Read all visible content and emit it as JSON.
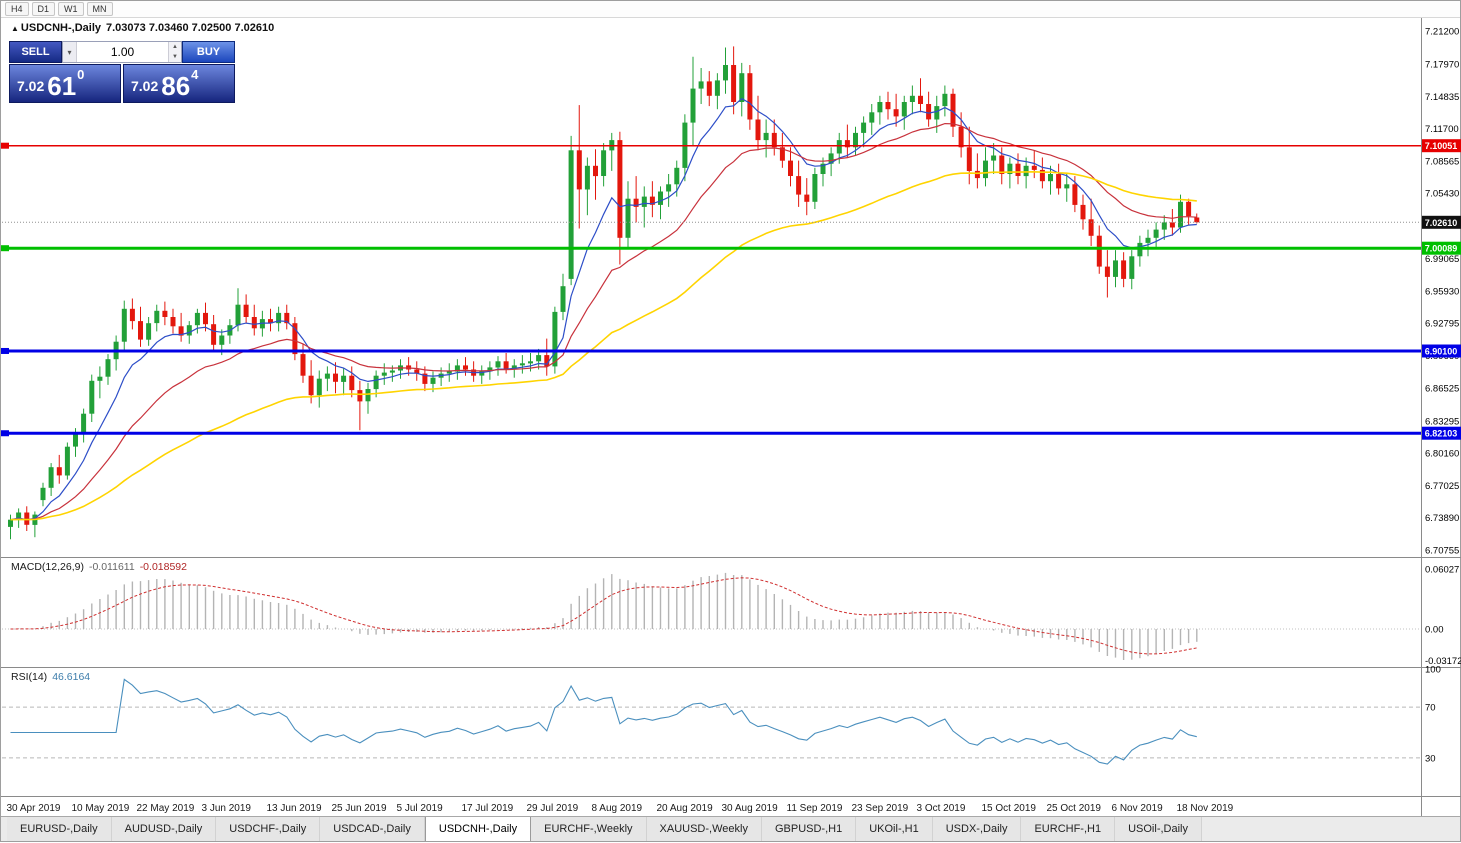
{
  "toolbar": {
    "timeframes": [
      "H4",
      "D1",
      "W1",
      "MN"
    ]
  },
  "chart": {
    "marker": "▲",
    "symbol": "USDCNH-,Daily",
    "ohlc": "7.03073 7.03460 7.02500 7.02610",
    "current_price": {
      "price": 7.0261,
      "label": "7.02610",
      "color": "#111111"
    }
  },
  "one_click": {
    "sell_label": "SELL",
    "buy_label": "BUY",
    "volume": "1.00",
    "sell_price": {
      "head": "7.02",
      "pips": "61",
      "pt": "0"
    },
    "buy_price": {
      "head": "7.02",
      "pips": "86",
      "pt": "4"
    }
  },
  "levels": [
    {
      "price": 7.10051,
      "label": "7.10051",
      "color": "#e60000",
      "width": 1.5
    },
    {
      "price": 7.00089,
      "label": "7.00089",
      "color": "#00bf00",
      "width": 3
    },
    {
      "price": 6.901,
      "label": "6.90100",
      "color": "#0000e6",
      "width": 3
    },
    {
      "price": 6.82103,
      "label": "6.82103",
      "color": "#0000e6",
      "width": 3
    }
  ],
  "price_axis_labels": [
    "7.21200",
    "7.17970",
    "7.14835",
    "7.11700",
    "7.08565",
    "7.05430",
    "6.99065",
    "6.95930",
    "6.92795",
    "6.89660",
    "6.86525",
    "6.83295",
    "6.80160",
    "6.77025",
    "6.73890",
    "6.70755"
  ],
  "macd_panel": {
    "name": "MACD(12,26,9)",
    "value": "-0.011611",
    "signal_value": "-0.018592",
    "axis": [
      "0.06027",
      "0.00",
      "-0.03172"
    ]
  },
  "rsi_panel": {
    "name": "RSI(14)",
    "value": "46.6164",
    "axis": [
      "100",
      "70",
      "30"
    ],
    "levels": [
      70,
      30
    ]
  },
  "date_axis": [
    "30 Apr 2019",
    "10 May 2019",
    "22 May 2019",
    "3 Jun 2019",
    "13 Jun 2019",
    "25 Jun 2019",
    "5 Jul 2019",
    "17 Jul 2019",
    "29 Jul 2019",
    "8 Aug 2019",
    "20 Aug 2019",
    "30 Aug 2019",
    "11 Sep 2019",
    "23 Sep 2019",
    "3 Oct 2019",
    "15 Oct 2019",
    "25 Oct 2019",
    "6 Nov 2019",
    "18 Nov 2019"
  ],
  "tabs": {
    "items": [
      "EURUSD-,Daily",
      "AUDUSD-,Daily",
      "USDCHF-,Daily",
      "USDCAD-,Daily",
      "USDCNH-,Daily",
      "EURCHF-,Weekly",
      "XAUUSD-,Weekly",
      "GBPUSD-,H1",
      "UKOil-,H1",
      "USDX-,Daily",
      "EURCHF-,H1",
      "USOil-,Daily"
    ],
    "active": "USDCNH-,Daily"
  },
  "chart_data": {
    "type": "candlestick",
    "symbol": "USDCNH",
    "timeframe": "Daily",
    "y_range": [
      6.70755,
      7.212
    ],
    "x_labels": [
      "30 Apr 2019",
      "10 May 2019",
      "22 May 2019",
      "3 Jun 2019",
      "13 Jun 2019",
      "25 Jun 2019",
      "5 Jul 2019",
      "17 Jul 2019",
      "29 Jul 2019",
      "8 Aug 2019",
      "20 Aug 2019",
      "30 Aug 2019",
      "11 Sep 2019",
      "23 Sep 2019",
      "3 Oct 2019",
      "15 Oct 2019",
      "25 Oct 2019",
      "6 Nov 2019",
      "18 Nov 2019"
    ],
    "overlays": [
      {
        "name": "ma-fast",
        "period": 8,
        "color": "#2d4ec8"
      },
      {
        "name": "ma-mid",
        "period": 21,
        "color": "#c8323c"
      },
      {
        "name": "ma-slow",
        "period": 55,
        "color": "#ffd400"
      }
    ],
    "indicators": [
      {
        "type": "macd",
        "params": [
          12,
          26,
          9
        ],
        "last": -0.011611,
        "signal_last": -0.018592
      },
      {
        "type": "rsi",
        "params": [
          14
        ],
        "last": 46.6164
      }
    ],
    "up_color": "#22a038",
    "down_color": "#e3170d",
    "candles": [
      [
        6.73,
        6.742,
        6.718,
        6.737
      ],
      [
        6.737,
        6.748,
        6.729,
        6.744
      ],
      [
        6.744,
        6.75,
        6.726,
        6.732
      ],
      [
        6.732,
        6.745,
        6.72,
        6.742
      ],
      [
        6.756,
        6.773,
        6.75,
        6.768
      ],
      [
        6.768,
        6.792,
        6.76,
        6.788
      ],
      [
        6.788,
        6.8,
        6.772,
        6.78
      ],
      [
        6.78,
        6.812,
        6.776,
        6.808
      ],
      [
        6.808,
        6.826,
        6.798,
        6.82
      ],
      [
        6.82,
        6.845,
        6.812,
        6.84
      ],
      [
        6.84,
        6.878,
        6.832,
        6.872
      ],
      [
        6.872,
        6.886,
        6.855,
        6.876
      ],
      [
        6.876,
        6.898,
        6.868,
        6.893
      ],
      [
        6.893,
        6.916,
        6.882,
        6.91
      ],
      [
        6.91,
        6.95,
        6.9,
        6.942
      ],
      [
        6.942,
        6.952,
        6.922,
        6.93
      ],
      [
        6.93,
        6.944,
        6.905,
        6.912
      ],
      [
        6.912,
        6.934,
        6.906,
        6.928
      ],
      [
        6.928,
        6.946,
        6.92,
        6.94
      ],
      [
        6.94,
        6.949,
        6.926,
        6.934
      ],
      [
        6.934,
        6.942,
        6.918,
        6.925
      ],
      [
        6.925,
        6.938,
        6.91,
        6.916
      ],
      [
        6.916,
        6.93,
        6.908,
        6.926
      ],
      [
        6.926,
        6.942,
        6.918,
        6.938
      ],
      [
        6.938,
        6.948,
        6.92,
        6.927
      ],
      [
        6.927,
        6.936,
        6.9,
        6.907
      ],
      [
        6.907,
        6.922,
        6.897,
        6.916
      ],
      [
        6.916,
        6.932,
        6.908,
        6.926
      ],
      [
        6.926,
        6.962,
        6.92,
        6.946
      ],
      [
        6.946,
        6.956,
        6.928,
        6.934
      ],
      [
        6.934,
        6.946,
        6.916,
        6.923
      ],
      [
        6.923,
        6.94,
        6.915,
        6.932
      ],
      [
        6.932,
        6.942,
        6.92,
        6.928
      ],
      [
        6.928,
        6.944,
        6.92,
        6.938
      ],
      [
        6.938,
        6.946,
        6.922,
        6.928
      ],
      [
        6.928,
        6.934,
        6.892,
        6.898
      ],
      [
        6.898,
        6.908,
        6.87,
        6.877
      ],
      [
        6.877,
        6.892,
        6.85,
        6.858
      ],
      [
        6.858,
        6.882,
        6.846,
        6.874
      ],
      [
        6.874,
        6.886,
        6.862,
        6.879
      ],
      [
        6.879,
        6.89,
        6.86,
        6.871
      ],
      [
        6.871,
        6.884,
        6.858,
        6.877
      ],
      [
        6.877,
        6.886,
        6.856,
        6.863
      ],
      [
        6.863,
        6.872,
        6.824,
        6.852
      ],
      [
        6.852,
        6.87,
        6.84,
        6.864
      ],
      [
        6.864,
        6.882,
        6.856,
        6.877
      ],
      [
        6.877,
        6.889,
        6.868,
        6.88
      ],
      [
        6.88,
        6.887,
        6.871,
        6.882
      ],
      [
        6.882,
        6.893,
        6.874,
        6.887
      ],
      [
        6.887,
        6.895,
        6.877,
        6.883
      ],
      [
        6.883,
        6.891,
        6.872,
        6.879
      ],
      [
        6.879,
        6.886,
        6.862,
        6.869
      ],
      [
        6.869,
        6.881,
        6.861,
        6.875
      ],
      [
        6.875,
        6.885,
        6.867,
        6.879
      ],
      [
        6.879,
        6.889,
        6.871,
        6.881
      ],
      [
        6.881,
        6.893,
        6.873,
        6.887
      ],
      [
        6.887,
        6.895,
        6.877,
        6.883
      ],
      [
        6.883,
        6.891,
        6.871,
        6.877
      ],
      [
        6.877,
        6.887,
        6.869,
        6.881
      ],
      [
        6.881,
        6.891,
        6.873,
        6.885
      ],
      [
        6.885,
        6.896,
        6.877,
        6.891
      ],
      [
        6.891,
        6.899,
        6.879,
        6.883
      ],
      [
        6.883,
        6.893,
        6.875,
        6.887
      ],
      [
        6.887,
        6.897,
        6.879,
        6.889
      ],
      [
        6.889,
        6.899,
        6.881,
        6.891
      ],
      [
        6.891,
        6.903,
        6.883,
        6.897
      ],
      [
        6.897,
        6.913,
        6.877,
        6.886
      ],
      [
        6.886,
        6.944,
        6.879,
        6.939
      ],
      [
        6.939,
        6.976,
        6.931,
        6.964
      ],
      [
        6.971,
        7.11,
        6.965,
        7.096
      ],
      [
        7.096,
        7.14,
        7.02,
        7.058
      ],
      [
        7.058,
        7.089,
        7.033,
        7.081
      ],
      [
        7.081,
        7.097,
        7.048,
        7.071
      ],
      [
        7.071,
        7.103,
        7.061,
        7.096
      ],
      [
        7.096,
        7.113,
        7.076,
        7.106
      ],
      [
        7.106,
        7.114,
        6.985,
        7.011
      ],
      [
        7.011,
        7.066,
        7.001,
        7.049
      ],
      [
        7.049,
        7.071,
        7.026,
        7.041
      ],
      [
        7.041,
        7.061,
        7.021,
        7.051
      ],
      [
        7.051,
        7.066,
        7.031,
        7.043
      ],
      [
        7.043,
        7.061,
        7.029,
        7.056
      ],
      [
        7.056,
        7.073,
        7.041,
        7.063
      ],
      [
        7.063,
        7.086,
        7.051,
        7.079
      ],
      [
        7.079,
        7.131,
        7.066,
        7.123
      ],
      [
        7.123,
        7.187,
        7.101,
        7.156
      ],
      [
        7.156,
        7.176,
        7.141,
        7.163
      ],
      [
        7.163,
        7.173,
        7.139,
        7.149
      ],
      [
        7.149,
        7.171,
        7.136,
        7.164
      ],
      [
        7.164,
        7.196,
        7.151,
        7.179
      ],
      [
        7.179,
        7.197,
        7.131,
        7.143
      ],
      [
        7.143,
        7.181,
        7.129,
        7.171
      ],
      [
        7.171,
        7.179,
        7.116,
        7.126
      ],
      [
        7.126,
        7.149,
        7.096,
        7.106
      ],
      [
        7.106,
        7.126,
        7.089,
        7.113
      ],
      [
        7.113,
        7.126,
        7.091,
        7.099
      ],
      [
        7.099,
        7.113,
        7.079,
        7.086
      ],
      [
        7.086,
        7.099,
        7.061,
        7.071
      ],
      [
        7.071,
        7.086,
        7.041,
        7.053
      ],
      [
        7.053,
        7.069,
        7.033,
        7.046
      ],
      [
        7.046,
        7.079,
        7.039,
        7.073
      ],
      [
        7.073,
        7.089,
        7.061,
        7.083
      ],
      [
        7.083,
        7.099,
        7.071,
        7.093
      ],
      [
        7.093,
        7.113,
        7.083,
        7.106
      ],
      [
        7.106,
        7.121,
        7.089,
        7.099
      ],
      [
        7.099,
        7.119,
        7.091,
        7.113
      ],
      [
        7.113,
        7.129,
        7.099,
        7.123
      ],
      [
        7.123,
        7.141,
        7.111,
        7.133
      ],
      [
        7.133,
        7.149,
        7.121,
        7.143
      ],
      [
        7.143,
        7.153,
        7.126,
        7.136
      ],
      [
        7.136,
        7.151,
        7.119,
        7.129
      ],
      [
        7.129,
        7.149,
        7.116,
        7.143
      ],
      [
        7.143,
        7.159,
        7.131,
        7.149
      ],
      [
        7.149,
        7.166,
        7.133,
        7.141
      ],
      [
        7.141,
        7.153,
        7.119,
        7.126
      ],
      [
        7.126,
        7.149,
        7.113,
        7.139
      ],
      [
        7.139,
        7.159,
        7.129,
        7.151
      ],
      [
        7.151,
        7.156,
        7.109,
        7.119
      ],
      [
        7.119,
        7.133,
        7.089,
        7.099
      ],
      [
        7.099,
        7.119,
        7.063,
        7.076
      ],
      [
        7.076,
        7.093,
        7.059,
        7.069
      ],
      [
        7.069,
        7.099,
        7.061,
        7.086
      ],
      [
        7.086,
        7.103,
        7.073,
        7.091
      ],
      [
        7.091,
        7.099,
        7.063,
        7.073
      ],
      [
        7.073,
        7.089,
        7.059,
        7.083
      ],
      [
        7.083,
        7.093,
        7.063,
        7.071
      ],
      [
        7.071,
        7.089,
        7.059,
        7.081
      ],
      [
        7.081,
        7.096,
        7.069,
        7.077
      ],
      [
        7.077,
        7.089,
        7.059,
        7.066
      ],
      [
        7.066,
        7.081,
        7.053,
        7.073
      ],
      [
        7.073,
        7.083,
        7.053,
        7.059
      ],
      [
        7.059,
        7.073,
        7.046,
        7.063
      ],
      [
        7.063,
        7.071,
        7.036,
        7.043
      ],
      [
        7.043,
        7.053,
        7.019,
        7.029
      ],
      [
        7.029,
        7.049,
        7.003,
        7.013
      ],
      [
        7.013,
        7.023,
        6.976,
        6.983
      ],
      [
        6.983,
        6.999,
        6.953,
        6.973
      ],
      [
        6.973,
        6.999,
        6.963,
        6.989
      ],
      [
        6.989,
        6.997,
        6.963,
        6.971
      ],
      [
        6.971,
        6.999,
        6.961,
        6.993
      ],
      [
        6.993,
        7.013,
        6.983,
        7.006
      ],
      [
        7.006,
        7.019,
        6.993,
        7.011
      ],
      [
        7.011,
        7.026,
        7.001,
        7.019
      ],
      [
        7.019,
        7.033,
        7.009,
        7.026
      ],
      [
        7.026,
        7.039,
        7.013,
        7.021
      ],
      [
        7.021,
        7.053,
        7.016,
        7.046
      ],
      [
        7.046,
        7.049,
        7.023,
        7.032
      ],
      [
        7.03073,
        7.0346,
        7.025,
        7.0261
      ]
    ]
  }
}
